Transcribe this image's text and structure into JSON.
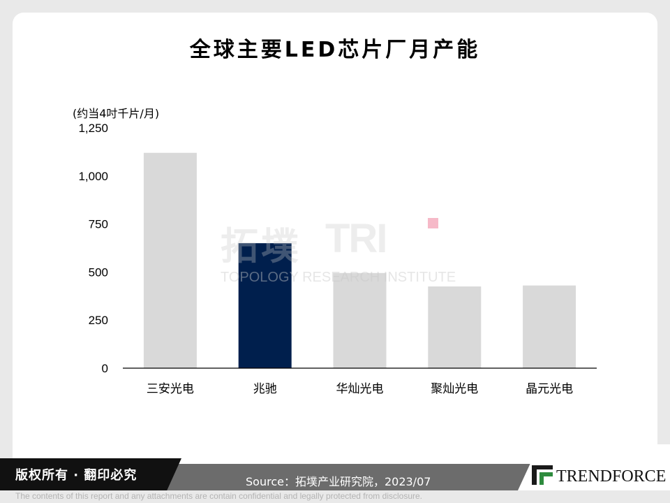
{
  "title": "全球主要LED芯片厂月产能",
  "chart_data": {
    "type": "bar",
    "ylabel": "(约当4吋千片/月)",
    "categories": [
      "三安光电",
      "兆驰",
      "华灿光电",
      "聚灿光电",
      "晶元光电"
    ],
    "values": [
      1120,
      650,
      495,
      425,
      430
    ],
    "highlight_index": 1,
    "ylim": [
      0,
      1250
    ],
    "yticks": [
      0,
      250,
      500,
      750,
      1000,
      1250
    ],
    "ytick_labels": [
      "0",
      "250",
      "500",
      "750",
      "1,000",
      "1,250"
    ],
    "colors": {
      "default": "#d9d9d9",
      "highlight": "#001f4d"
    },
    "grid": false
  },
  "watermark": {
    "cn": "拓墣",
    "brand": "TRI",
    "en": "TOPOLOGY RESEARCH INSTITUTE"
  },
  "footer": {
    "copyright": "版权所有 · 翻印必究",
    "source": "Source：拓墣产业研究院，2023/07",
    "logo": "TRENDFORCE",
    "disclaimer": "The contents of this report and any attachments are contain confidential and legally protected from disclosure."
  }
}
